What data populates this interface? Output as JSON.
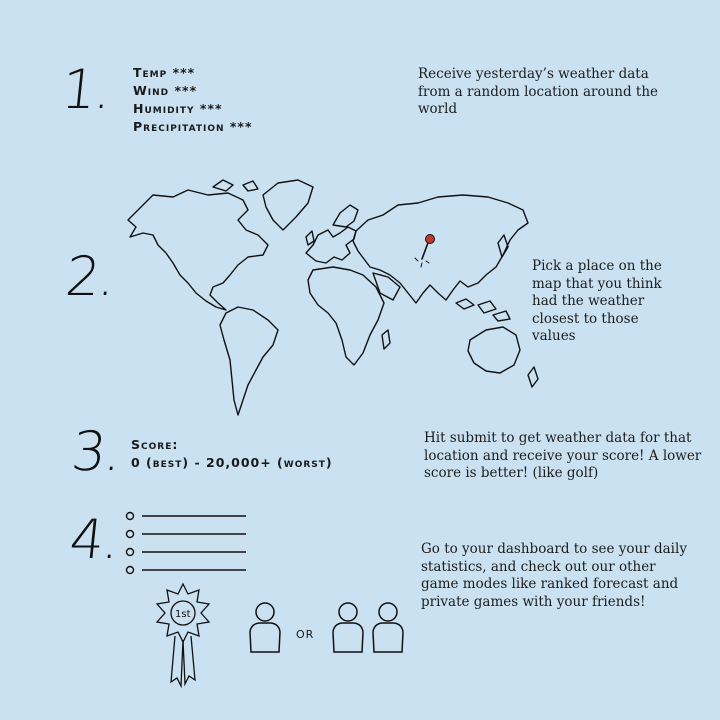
{
  "step1": {
    "number": "1.",
    "lines": [
      "Temp ***",
      "Wind ***",
      "Humidity ***",
      "Precipitation ***"
    ],
    "description": "Receive yesterday’s weather data from a random location around the world"
  },
  "step2": {
    "number": "2.",
    "description": "Pick a place on the map that you think had the weather closest to those values",
    "pin_color": "#c0392b"
  },
  "step3": {
    "number": "3.",
    "score_label": "Score:",
    "score_range": "0 (best) - 20,000+ (worst)",
    "description": "Hit submit to get weather data for that location and receive your score! A lower score is better! (like golf)"
  },
  "step4": {
    "number": "4.",
    "badge_text": "1st",
    "or_text": "OR",
    "description": "Go to your dashboard to see your daily statistics, and check out our other game modes like ranked forecast and private games with your friends!"
  }
}
